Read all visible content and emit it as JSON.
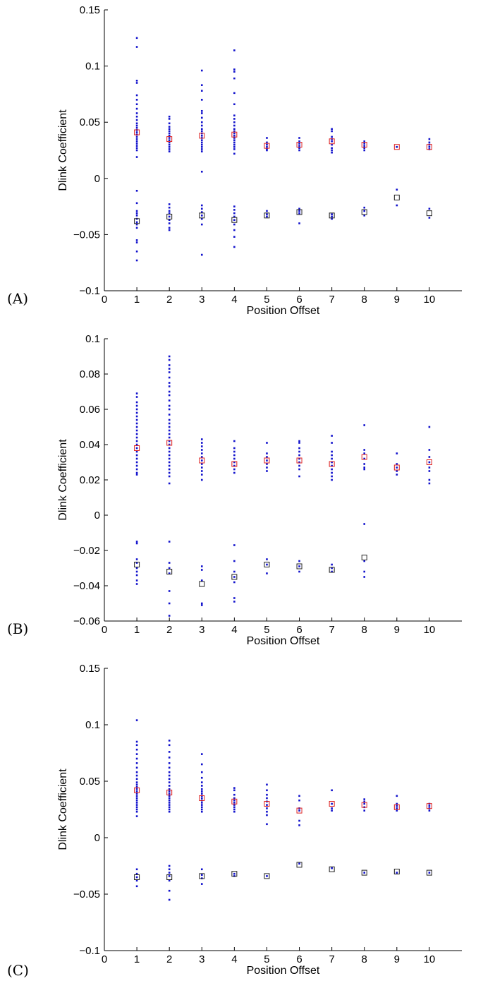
{
  "chart_data": [
    {
      "type": "scatter",
      "panel_label": "(A)",
      "xlabel": "Position Offset",
      "ylabel": "Dlink Coefficient",
      "xlim": [
        0,
        11
      ],
      "ylim": [
        -0.1,
        0.15
      ],
      "xticks": [
        "0",
        "1",
        "2",
        "3",
        "4",
        "5",
        "6",
        "7",
        "8",
        "9",
        "10"
      ],
      "yticks": [
        "0.15",
        "0.1",
        "0.05",
        "0",
        "−0.05",
        "−0.1"
      ],
      "ytick_values": [
        0.15,
        0.1,
        0.05,
        0,
        -0.05,
        -0.1
      ],
      "grid": false,
      "point_color": "#1111cc",
      "positive_mean_color": "#dd2222",
      "negative_mean_color": "#222222",
      "points": [
        {
          "x": 1,
          "values": [
            0.125,
            0.117,
            0.087,
            0.085,
            0.074,
            0.07,
            0.066,
            0.062,
            0.058,
            0.055,
            0.052,
            0.049,
            0.047,
            0.045,
            0.043,
            0.041,
            0.039,
            0.037,
            0.035,
            0.033,
            0.031,
            0.029,
            0.027,
            0.025,
            0.019,
            -0.011,
            -0.022,
            -0.029,
            -0.031,
            -0.033,
            -0.036,
            -0.039,
            -0.041,
            -0.044,
            -0.055,
            -0.057,
            -0.065,
            -0.073
          ]
        },
        {
          "x": 2,
          "values": [
            0.055,
            0.053,
            0.049,
            0.046,
            0.044,
            0.042,
            0.04,
            0.038,
            0.036,
            0.034,
            0.032,
            0.03,
            0.028,
            0.026,
            0.024,
            -0.023,
            -0.026,
            -0.029,
            -0.031,
            -0.034,
            -0.037,
            -0.04,
            -0.044,
            -0.046
          ]
        },
        {
          "x": 3,
          "values": [
            0.096,
            0.083,
            0.078,
            0.07,
            0.06,
            0.058,
            0.054,
            0.05,
            0.047,
            0.044,
            0.042,
            0.04,
            0.038,
            0.036,
            0.034,
            0.032,
            0.03,
            0.028,
            0.026,
            0.024,
            0.006,
            -0.024,
            -0.027,
            -0.03,
            -0.033,
            -0.036,
            -0.041,
            -0.068
          ]
        },
        {
          "x": 4,
          "values": [
            0.114,
            0.097,
            0.095,
            0.089,
            0.076,
            0.066,
            0.056,
            0.053,
            0.05,
            0.047,
            0.044,
            0.042,
            0.04,
            0.038,
            0.036,
            0.034,
            0.032,
            0.03,
            0.028,
            0.026,
            0.022,
            -0.025,
            -0.028,
            -0.031,
            -0.034,
            -0.037,
            -0.041,
            -0.046,
            -0.052,
            -0.061
          ]
        },
        {
          "x": 5,
          "values": [
            0.036,
            0.032,
            0.03,
            0.028,
            0.026,
            0.025,
            -0.029,
            -0.032,
            -0.034
          ]
        },
        {
          "x": 6,
          "values": [
            0.036,
            0.033,
            0.031,
            0.029,
            0.027,
            0.025,
            -0.027,
            -0.029,
            -0.031,
            -0.04
          ]
        },
        {
          "x": 7,
          "values": [
            0.044,
            0.042,
            0.037,
            0.035,
            0.033,
            0.03,
            0.027,
            0.025,
            0.023,
            -0.032,
            -0.034,
            -0.036
          ]
        },
        {
          "x": 8,
          "values": [
            0.033,
            0.031,
            0.029,
            0.027,
            0.025,
            -0.026,
            -0.029,
            -0.033
          ]
        },
        {
          "x": 9,
          "values": [
            0.028,
            -0.01,
            -0.024
          ]
        },
        {
          "x": 10,
          "values": [
            0.035,
            0.032,
            0.03,
            0.028,
            0.026,
            -0.027,
            -0.035
          ]
        }
      ],
      "positive_means": [
        {
          "x": 1,
          "y": 0.041
        },
        {
          "x": 2,
          "y": 0.035
        },
        {
          "x": 3,
          "y": 0.038
        },
        {
          "x": 4,
          "y": 0.039
        },
        {
          "x": 5,
          "y": 0.029
        },
        {
          "x": 6,
          "y": 0.03
        },
        {
          "x": 7,
          "y": 0.033
        },
        {
          "x": 8,
          "y": 0.03
        },
        {
          "x": 9,
          "y": 0.028
        },
        {
          "x": 10,
          "y": 0.028
        }
      ],
      "negative_means": [
        {
          "x": 1,
          "y": -0.038
        },
        {
          "x": 2,
          "y": -0.034
        },
        {
          "x": 3,
          "y": -0.033
        },
        {
          "x": 4,
          "y": -0.037
        },
        {
          "x": 5,
          "y": -0.033
        },
        {
          "x": 6,
          "y": -0.03
        },
        {
          "x": 7,
          "y": -0.033
        },
        {
          "x": 8,
          "y": -0.03
        },
        {
          "x": 9,
          "y": -0.017
        },
        {
          "x": 10,
          "y": -0.031
        }
      ]
    },
    {
      "type": "scatter",
      "panel_label": "(B)",
      "xlabel": "Position Offset",
      "ylabel": "Dlink Coefficient",
      "xlim": [
        0,
        11
      ],
      "ylim": [
        -0.06,
        0.1
      ],
      "xticks": [
        "0",
        "1",
        "2",
        "3",
        "4",
        "5",
        "6",
        "7",
        "8",
        "9",
        "10"
      ],
      "yticks": [
        "0.1",
        "0.08",
        "0.06",
        "0.04",
        "0.02",
        "0",
        "−0.02",
        "−0.04",
        "−0.06"
      ],
      "ytick_values": [
        0.1,
        0.08,
        0.06,
        0.04,
        0.02,
        0,
        -0.02,
        -0.04,
        -0.06
      ],
      "grid": false,
      "point_color": "#1111cc",
      "positive_mean_color": "#dd2222",
      "negative_mean_color": "#222222",
      "points": [
        {
          "x": 1,
          "values": [
            0.069,
            0.067,
            0.064,
            0.062,
            0.06,
            0.058,
            0.056,
            0.054,
            0.052,
            0.05,
            0.048,
            0.046,
            0.044,
            0.042,
            0.04,
            0.038,
            0.036,
            0.034,
            0.032,
            0.03,
            0.028,
            0.026,
            0.024,
            0.023,
            -0.015,
            -0.016,
            -0.025,
            -0.027,
            -0.03,
            -0.032,
            -0.034,
            -0.037,
            -0.039
          ]
        },
        {
          "x": 2,
          "values": [
            0.09,
            0.088,
            0.085,
            0.083,
            0.081,
            0.078,
            0.075,
            0.073,
            0.07,
            0.068,
            0.065,
            0.062,
            0.06,
            0.057,
            0.054,
            0.052,
            0.05,
            0.048,
            0.046,
            0.044,
            0.042,
            0.04,
            0.038,
            0.036,
            0.034,
            0.032,
            0.03,
            0.028,
            0.026,
            0.024,
            0.022,
            0.018,
            -0.015,
            -0.027,
            -0.03,
            -0.033,
            -0.043,
            -0.05,
            -0.057
          ]
        },
        {
          "x": 3,
          "values": [
            0.043,
            0.041,
            0.039,
            0.037,
            0.035,
            0.033,
            0.031,
            0.029,
            0.027,
            0.025,
            0.023,
            0.02,
            -0.029,
            -0.031,
            -0.037,
            -0.05,
            -0.051
          ]
        },
        {
          "x": 4,
          "values": [
            0.042,
            0.038,
            0.036,
            0.034,
            0.032,
            0.03,
            0.028,
            0.026,
            0.024,
            -0.017,
            -0.026,
            -0.032,
            -0.035,
            -0.038,
            -0.047,
            -0.049
          ]
        },
        {
          "x": 5,
          "values": [
            0.041,
            0.035,
            0.033,
            0.031,
            0.029,
            0.027,
            0.025,
            -0.025,
            -0.028,
            -0.033
          ]
        },
        {
          "x": 6,
          "values": [
            0.042,
            0.041,
            0.038,
            0.036,
            0.034,
            0.032,
            0.03,
            0.028,
            0.026,
            0.022,
            -0.026,
            -0.029,
            -0.032
          ]
        },
        {
          "x": 7,
          "values": [
            0.045,
            0.041,
            0.036,
            0.034,
            0.032,
            0.03,
            0.028,
            0.026,
            0.024,
            0.022,
            0.02,
            -0.028,
            -0.03,
            -0.032
          ]
        },
        {
          "x": 8,
          "values": [
            0.051,
            0.037,
            0.035,
            0.032,
            0.029,
            0.027,
            0.026,
            -0.005,
            -0.026,
            -0.032,
            -0.035
          ]
        },
        {
          "x": 9,
          "values": [
            0.035,
            0.029,
            0.027,
            0.025,
            0.023
          ]
        },
        {
          "x": 10,
          "values": [
            0.05,
            0.037,
            0.033,
            0.03,
            0.027,
            0.025,
            0.02,
            0.018
          ]
        }
      ],
      "positive_means": [
        {
          "x": 1,
          "y": 0.038
        },
        {
          "x": 2,
          "y": 0.041
        },
        {
          "x": 3,
          "y": 0.031
        },
        {
          "x": 4,
          "y": 0.029
        },
        {
          "x": 5,
          "y": 0.031
        },
        {
          "x": 6,
          "y": 0.031
        },
        {
          "x": 7,
          "y": 0.029
        },
        {
          "x": 8,
          "y": 0.033
        },
        {
          "x": 9,
          "y": 0.027
        },
        {
          "x": 10,
          "y": 0.03
        }
      ],
      "negative_means": [
        {
          "x": 1,
          "y": -0.028
        },
        {
          "x": 2,
          "y": -0.032
        },
        {
          "x": 3,
          "y": -0.039
        },
        {
          "x": 4,
          "y": -0.035
        },
        {
          "x": 5,
          "y": -0.028
        },
        {
          "x": 6,
          "y": -0.029
        },
        {
          "x": 7,
          "y": -0.031
        },
        {
          "x": 8,
          "y": -0.024
        }
      ]
    },
    {
      "type": "scatter",
      "panel_label": "(C)",
      "xlabel": "Position Offset",
      "ylabel": "Dlink Coefficient",
      "xlim": [
        0,
        11
      ],
      "ylim": [
        -0.1,
        0.15
      ],
      "xticks": [
        "0",
        "1",
        "2",
        "3",
        "4",
        "5",
        "6",
        "7",
        "8",
        "9",
        "10"
      ],
      "yticks": [
        "0.15",
        "0.1",
        "0.05",
        "0",
        "−0.05",
        "−0.1"
      ],
      "ytick_values": [
        0.15,
        0.1,
        0.05,
        0,
        -0.05,
        -0.1
      ],
      "grid": false,
      "point_color": "#1111cc",
      "positive_mean_color": "#dd2222",
      "negative_mean_color": "#222222",
      "points": [
        {
          "x": 1,
          "values": [
            0.104,
            0.085,
            0.082,
            0.078,
            0.074,
            0.07,
            0.066,
            0.062,
            0.058,
            0.055,
            0.052,
            0.049,
            0.047,
            0.045,
            0.043,
            0.041,
            0.039,
            0.037,
            0.035,
            0.033,
            0.031,
            0.029,
            0.027,
            0.025,
            0.023,
            0.019,
            -0.028,
            -0.032,
            -0.035,
            -0.038,
            -0.043
          ]
        },
        {
          "x": 2,
          "values": [
            0.086,
            0.082,
            0.076,
            0.071,
            0.066,
            0.062,
            0.058,
            0.055,
            0.052,
            0.049,
            0.046,
            0.043,
            0.041,
            0.039,
            0.037,
            0.035,
            0.033,
            0.031,
            0.029,
            0.027,
            0.025,
            0.023,
            -0.025,
            -0.028,
            -0.031,
            -0.034,
            -0.038,
            -0.047,
            -0.055
          ]
        },
        {
          "x": 3,
          "values": [
            0.074,
            0.065,
            0.058,
            0.053,
            0.049,
            0.046,
            0.043,
            0.041,
            0.039,
            0.037,
            0.035,
            0.033,
            0.031,
            0.029,
            0.027,
            0.025,
            0.023,
            -0.028,
            -0.033,
            -0.036,
            -0.041
          ]
        },
        {
          "x": 4,
          "values": [
            0.044,
            0.042,
            0.038,
            0.035,
            0.033,
            0.031,
            0.029,
            0.027,
            0.025,
            0.023,
            -0.032,
            -0.034
          ]
        },
        {
          "x": 5,
          "values": [
            0.047,
            0.042,
            0.038,
            0.035,
            0.032,
            0.029,
            0.026,
            0.023,
            0.02,
            0.012,
            -0.034
          ]
        },
        {
          "x": 6,
          "values": [
            0.037,
            0.033,
            0.026,
            0.024,
            0.015,
            0.011,
            -0.023
          ]
        },
        {
          "x": 7,
          "values": [
            0.042,
            0.03,
            0.026,
            0.024,
            -0.027
          ]
        },
        {
          "x": 8,
          "values": [
            0.034,
            0.032,
            0.03,
            0.027,
            0.024,
            -0.031
          ]
        },
        {
          "x": 9,
          "values": [
            0.037,
            0.03,
            0.028,
            0.026,
            0.024,
            -0.031
          ]
        },
        {
          "x": 10,
          "values": [
            0.03,
            0.028,
            0.026,
            0.024,
            -0.031
          ]
        }
      ],
      "positive_means": [
        {
          "x": 1,
          "y": 0.042
        },
        {
          "x": 2,
          "y": 0.04
        },
        {
          "x": 3,
          "y": 0.035
        },
        {
          "x": 4,
          "y": 0.032
        },
        {
          "x": 5,
          "y": 0.03
        },
        {
          "x": 6,
          "y": 0.024
        },
        {
          "x": 7,
          "y": 0.03
        },
        {
          "x": 8,
          "y": 0.029
        },
        {
          "x": 9,
          "y": 0.027
        },
        {
          "x": 10,
          "y": 0.028
        }
      ],
      "negative_means": [
        {
          "x": 1,
          "y": -0.035
        },
        {
          "x": 2,
          "y": -0.035
        },
        {
          "x": 3,
          "y": -0.034
        },
        {
          "x": 4,
          "y": -0.032
        },
        {
          "x": 5,
          "y": -0.034
        },
        {
          "x": 6,
          "y": -0.024
        },
        {
          "x": 7,
          "y": -0.028
        },
        {
          "x": 8,
          "y": -0.031
        },
        {
          "x": 9,
          "y": -0.03
        },
        {
          "x": 10,
          "y": -0.031
        }
      ]
    }
  ]
}
